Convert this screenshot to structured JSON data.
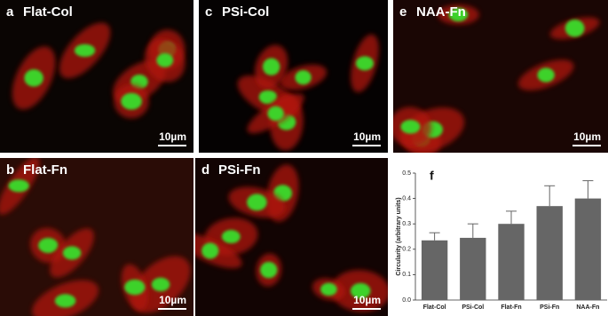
{
  "panels": [
    {
      "letter": "a",
      "title": "Flat-Col",
      "scale": "10µm"
    },
    {
      "letter": "c",
      "title": "PSi-Col",
      "scale": "10µm"
    },
    {
      "letter": "e",
      "title": "NAA-Fn",
      "scale": "10µm"
    },
    {
      "letter": "b",
      "title": "Flat-Fn",
      "scale": "10µm"
    },
    {
      "letter": "d",
      "title": "PSi-Fn",
      "scale": "10µm"
    }
  ],
  "chart_data": {
    "type": "bar",
    "panel_label": "f",
    "y_label": "Circularity (arbitrary units)",
    "categories": [
      "Flat-Col",
      "PSi-Col",
      "Flat-Fn",
      "PSi-Fn",
      "NAA-Fn"
    ],
    "values": [
      0.235,
      0.245,
      0.3,
      0.37,
      0.4
    ],
    "errors": [
      0.03,
      0.055,
      0.05,
      0.08,
      0.07
    ],
    "color": "#666666",
    "ylim": [
      0,
      0.5
    ],
    "yticks": [
      {
        "value": 0,
        "label": "0.0"
      },
      0.1,
      0.2,
      0.3,
      0.4,
      0.5
    ]
  }
}
